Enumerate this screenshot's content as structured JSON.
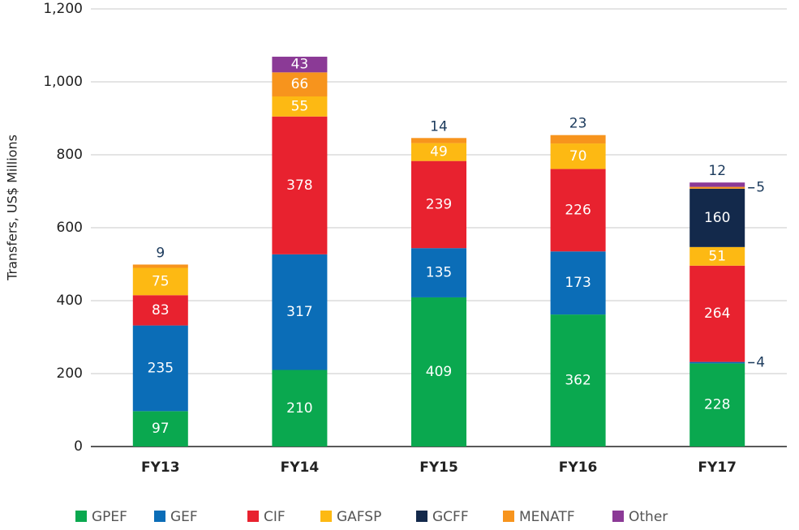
{
  "chart_data": {
    "type": "stacked_bar",
    "y_label": "Transfers, US$ Millions",
    "categories": [
      "FY13",
      "FY14",
      "FY15",
      "FY16",
      "FY17"
    ],
    "series": [
      {
        "name": "GPEF",
        "color": "#0aa84f",
        "values": [
          97,
          210,
          409,
          362,
          228
        ]
      },
      {
        "name": "GEF",
        "color": "#0b6db7",
        "values": [
          235,
          317,
          135,
          173,
          4
        ]
      },
      {
        "name": "CIF",
        "color": "#e8222f",
        "values": [
          83,
          378,
          239,
          226,
          264
        ]
      },
      {
        "name": "GAFSP",
        "color": "#fdb913",
        "values": [
          75,
          55,
          49,
          70,
          51
        ]
      },
      {
        "name": "GCFF",
        "color": "#13294b",
        "values": [
          0,
          0,
          0,
          0,
          160
        ]
      },
      {
        "name": "MENATF",
        "color": "#f7941d",
        "values": [
          9,
          66,
          14,
          23,
          5
        ]
      },
      {
        "name": "Other",
        "color": "#8b3a96",
        "values": [
          0,
          43,
          0,
          0,
          12
        ]
      }
    ],
    "ylim": [
      0,
      1200
    ],
    "yticks": [
      0,
      200,
      400,
      600,
      800,
      {
        "value": 1000,
        "label": "1,000"
      },
      {
        "value": 1200,
        "label": "1,200"
      }
    ],
    "grid": true,
    "legend": "bottom"
  }
}
